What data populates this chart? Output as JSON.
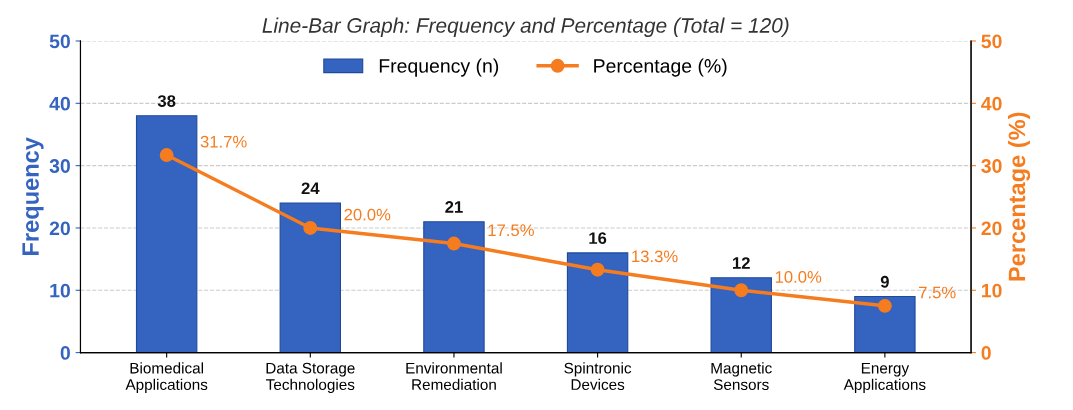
{
  "chart_data": {
    "type": "bar",
    "title": "Line-Bar Graph: Frequency and Percentage (Total = 120)",
    "categories": [
      "Biomedical\nApplications",
      "Data Storage\nTechnologies",
      "Environmental\nRemediation",
      "Spintronic\nDevices",
      "Magnetic\nSensors",
      "Energy\nApplications"
    ],
    "ylabel": "Frequency",
    "y2label": "Percentage (%)",
    "series": [
      {
        "name": "Frequency (n)",
        "type": "bar",
        "color": "#3563c0",
        "values": [
          38,
          24,
          21,
          16,
          12,
          9
        ],
        "value_labels": [
          "38",
          "24",
          "21",
          "16",
          "12",
          "9"
        ]
      },
      {
        "name": "Percentage (%)",
        "type": "line",
        "axis": "y2",
        "color": "#f57c1f",
        "marker": "circle",
        "values": [
          31.7,
          20.0,
          17.5,
          13.3,
          10.0,
          7.5
        ],
        "value_labels": [
          "31.7%",
          "20.0%",
          "17.5%",
          "13.3%",
          "10.0%",
          "7.5%"
        ]
      }
    ],
    "ylim": [
      0,
      50
    ],
    "yticks": [
      0,
      10,
      20,
      30,
      40,
      50
    ],
    "y2lim": [
      0,
      50
    ],
    "y2ticks": [
      0,
      10,
      20,
      30,
      40,
      50
    ],
    "grid": "y",
    "legend": "top"
  }
}
